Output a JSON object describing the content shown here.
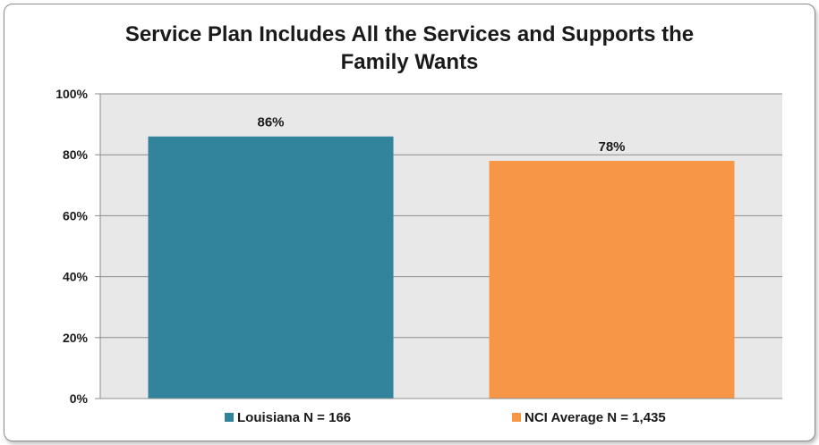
{
  "chart_data": {
    "type": "bar",
    "title_lines": [
      "Service Plan Includes All the Services and Supports the",
      "Family Wants"
    ],
    "categories": [
      "Louisiana N = 166",
      "NCI Average N = 1,435"
    ],
    "values": [
      86,
      78
    ],
    "data_labels": [
      "86%",
      "78%"
    ],
    "colors": [
      "#31849b",
      "#f79646"
    ],
    "ylim": [
      0,
      100
    ],
    "yticks": [
      0,
      20,
      40,
      60,
      80,
      100
    ],
    "ytick_labels": [
      "0%",
      "20%",
      "40%",
      "60%",
      "80%",
      "100%"
    ],
    "grid": true,
    "plot_background": "#e8e8e8",
    "legend": {
      "position": "bottom",
      "entries": [
        "Louisiana N = 166",
        "NCI Average N = 1,435"
      ]
    }
  }
}
